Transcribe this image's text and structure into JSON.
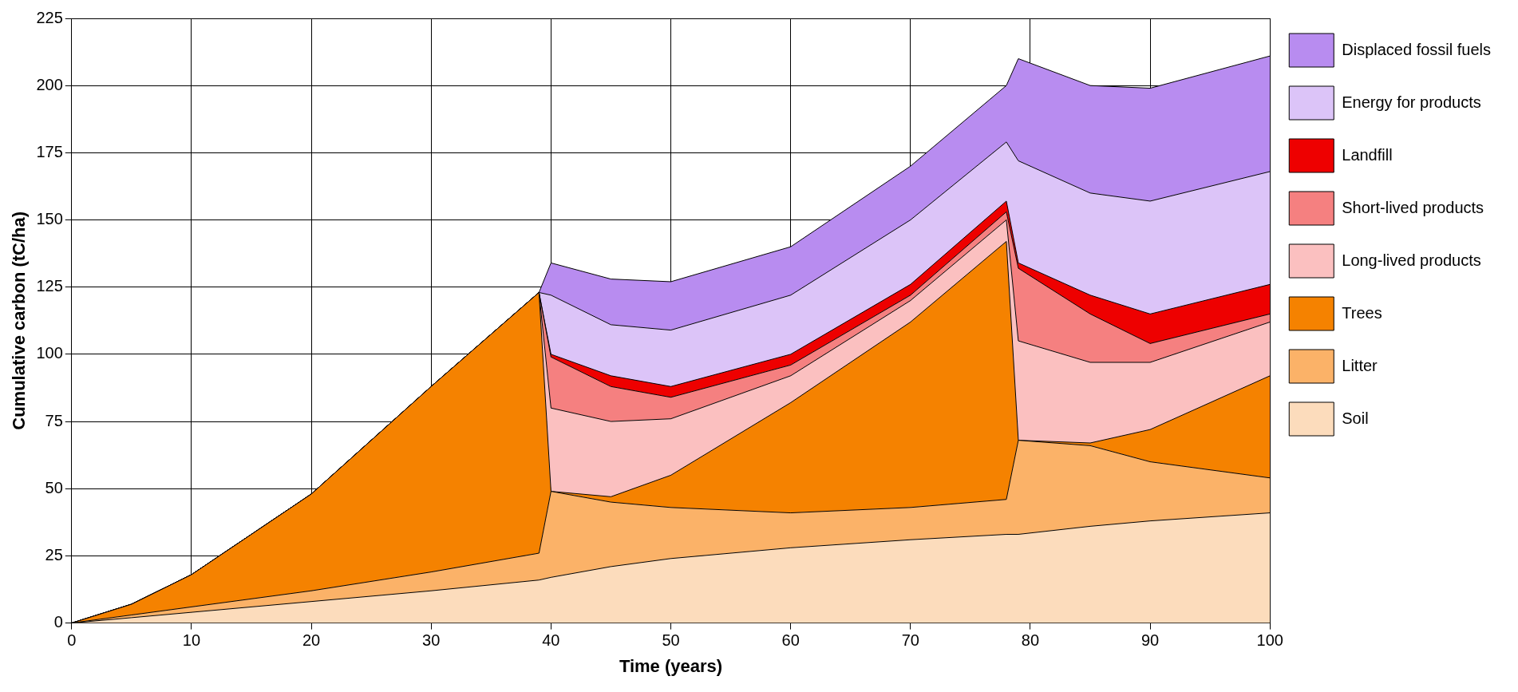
{
  "chart_data": {
    "type": "area",
    "xlabel": "Time (years)",
    "ylabel": "Cumulative carbon (tC/ha)",
    "stacked": true,
    "x": [
      0,
      5,
      10,
      20,
      30,
      39,
      40,
      45,
      50,
      60,
      70,
      78,
      79,
      85,
      90,
      100
    ],
    "series": [
      {
        "name": "Soil",
        "color": "#fcdcbc",
        "values": [
          0,
          2,
          4,
          8,
          12,
          16,
          17,
          21,
          24,
          28,
          31,
          33,
          33,
          36,
          38,
          41
        ]
      },
      {
        "name": "Litter",
        "color": "#fbb268",
        "values": [
          0,
          1,
          2,
          4,
          7,
          10,
          32,
          24,
          19,
          13,
          12,
          13,
          35,
          30,
          22,
          13
        ]
      },
      {
        "name": "Trees",
        "color": "#f58200",
        "values": [
          0,
          4,
          12,
          36,
          69,
          97,
          0,
          2,
          12,
          41,
          69,
          96,
          0,
          1,
          12,
          38
        ]
      },
      {
        "name": "Long-lived products",
        "color": "#fbc0c0",
        "values": [
          0,
          0,
          0,
          0,
          0,
          0,
          31,
          28,
          21,
          10,
          8,
          8,
          37,
          30,
          25,
          20
        ]
      },
      {
        "name": "Short-lived products",
        "color": "#f58080",
        "values": [
          0,
          0,
          0,
          0,
          0,
          0,
          19,
          13,
          8,
          4,
          2,
          3,
          27,
          18,
          7,
          3
        ]
      },
      {
        "name": "Landfill",
        "color": "#ee0000",
        "values": [
          0,
          0,
          0,
          0,
          0,
          0,
          1,
          4,
          4,
          4,
          4,
          4,
          2,
          7,
          11,
          11
        ]
      },
      {
        "name": "Energy for products",
        "color": "#dcc4f8",
        "values": [
          0,
          0,
          0,
          0,
          0,
          0,
          22,
          19,
          21,
          22,
          24,
          22,
          38,
          38,
          42,
          42
        ]
      },
      {
        "name": "Displaced fossil fuels",
        "color": "#b88cf0",
        "values": [
          0,
          0,
          0,
          0,
          0,
          0,
          12,
          17,
          18,
          18,
          20,
          21,
          38,
          40,
          42,
          43
        ]
      }
    ],
    "xlim": [
      0,
      100
    ],
    "xticks": [
      0,
      10,
      20,
      30,
      40,
      50,
      60,
      70,
      80,
      90,
      100
    ],
    "ylim": [
      0,
      225
    ],
    "yticks": [
      0,
      25,
      50,
      75,
      100,
      125,
      150,
      175,
      200,
      225
    ],
    "grid": true,
    "legend": "right"
  }
}
